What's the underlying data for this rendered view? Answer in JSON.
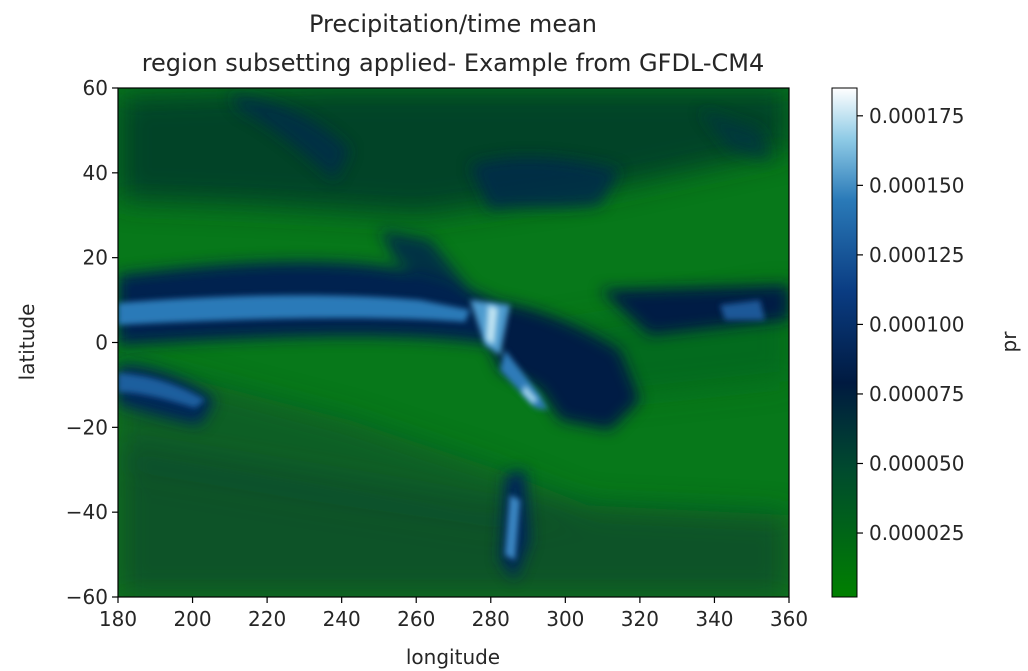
{
  "chart_data": {
    "type": "heatmap",
    "title": [
      "Precipitation/time mean",
      "region subsetting applied- Example from GFDL-CM4"
    ],
    "xlabel": "longitude",
    "ylabel": "latitude",
    "xlim": [
      180,
      360
    ],
    "ylim": [
      -60,
      60
    ],
    "x_ticks": [
      180,
      200,
      220,
      240,
      260,
      280,
      300,
      320,
      340,
      360
    ],
    "x_tick_labels": [
      "180",
      "200",
      "220",
      "240",
      "260",
      "280",
      "300",
      "320",
      "340",
      "360"
    ],
    "y_ticks": [
      -60,
      -40,
      -20,
      0,
      20,
      40,
      60
    ],
    "y_tick_labels": [
      "−60",
      "−40",
      "−20",
      "0",
      "20",
      "40",
      "60"
    ],
    "colorbar": {
      "label": "pr",
      "vmin": 2e-06,
      "vmax": 0.000185,
      "ticks": [
        2.5e-05,
        5e-05,
        7.5e-05,
        0.0001,
        0.000125,
        0.00015,
        0.000175
      ],
      "tick_labels": [
        "0.000025",
        "0.000050",
        "0.000075",
        "0.000100",
        "0.000125",
        "0.000150",
        "0.000175"
      ],
      "colormap": "ocean",
      "colors": [
        "#008000",
        "#001a40",
        "#0a3c82",
        "#2a7ab8",
        "#8fcbe6",
        "#ffffff"
      ]
    },
    "grid": false
  }
}
